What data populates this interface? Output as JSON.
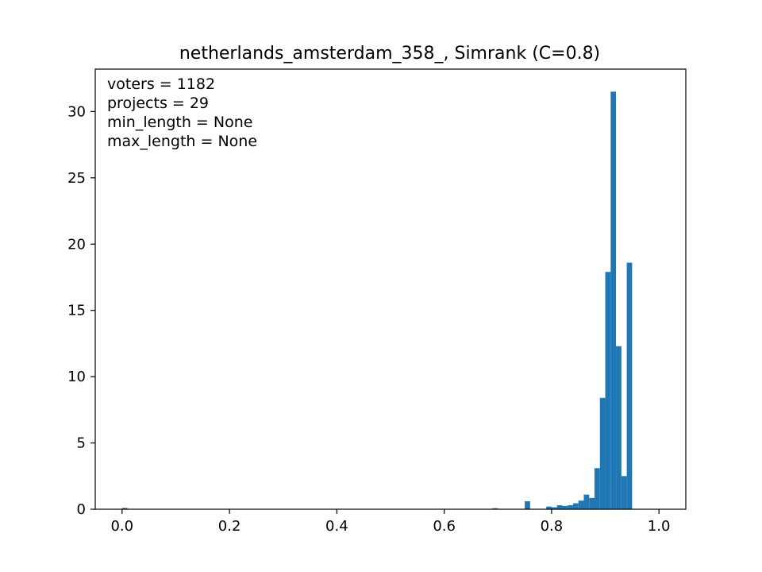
{
  "chart_data": {
    "type": "bar",
    "title": "netherlands_amsterdam_358_, Simrank (C=0.8)",
    "xlabel": "",
    "ylabel": "",
    "xlim": [
      -0.05,
      1.05
    ],
    "ylim": [
      0,
      33.2
    ],
    "grid": false,
    "bar_color": "#1f77b4",
    "bin_width": 0.01,
    "x_ticks": [
      0.0,
      0.2,
      0.4,
      0.6,
      0.8,
      1.0
    ],
    "x_tick_labels": [
      "0.0",
      "0.2",
      "0.4",
      "0.6",
      "0.8",
      "1.0"
    ],
    "y_ticks": [
      0,
      5,
      10,
      15,
      20,
      25,
      30
    ],
    "y_tick_labels": [
      "0",
      "5",
      "10",
      "15",
      "20",
      "25",
      "30"
    ],
    "annotations": [
      "voters = 1182",
      "projects = 29",
      "min_length = None",
      "max_length = None"
    ],
    "bins": [
      {
        "x": 0.0,
        "value": 0.1
      },
      {
        "x": 0.57,
        "value": 0.03
      },
      {
        "x": 0.69,
        "value": 0.08
      },
      {
        "x": 0.75,
        "value": 0.6
      },
      {
        "x": 0.79,
        "value": 0.2
      },
      {
        "x": 0.8,
        "value": 0.15
      },
      {
        "x": 0.81,
        "value": 0.3
      },
      {
        "x": 0.82,
        "value": 0.25
      },
      {
        "x": 0.83,
        "value": 0.3
      },
      {
        "x": 0.84,
        "value": 0.45
      },
      {
        "x": 0.85,
        "value": 0.65
      },
      {
        "x": 0.86,
        "value": 1.1
      },
      {
        "x": 0.87,
        "value": 0.85
      },
      {
        "x": 0.88,
        "value": 3.1
      },
      {
        "x": 0.89,
        "value": 8.4
      },
      {
        "x": 0.9,
        "value": 17.9
      },
      {
        "x": 0.91,
        "value": 31.5
      },
      {
        "x": 0.92,
        "value": 12.3
      },
      {
        "x": 0.93,
        "value": 2.5
      },
      {
        "x": 0.94,
        "value": 18.6
      }
    ]
  }
}
